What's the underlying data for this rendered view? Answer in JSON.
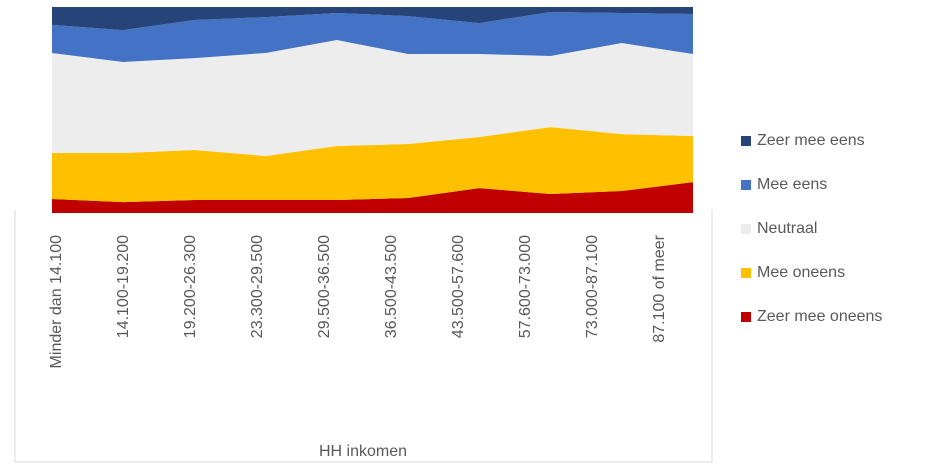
{
  "chart_data": {
    "type": "stacked_area",
    "x_label": "HH inkomen",
    "categories": [
      "Minder dan 14.100",
      "14.100-19.200",
      "19.200-26.300",
      "23.300-29.500",
      "29.500-36.500",
      "36.500-43.500",
      "43.500-57.600",
      "57.600-73.000",
      "73.000-87.100",
      "87.100 of meer"
    ],
    "ylim": [
      0,
      100
    ],
    "series": [
      {
        "name": "Zeer mee oneens",
        "color": "#c00000",
        "values": [
          6.8,
          5.3,
          6.3,
          6.3,
          6.3,
          7.3,
          12.1,
          9.2,
          10.7,
          15.0
        ]
      },
      {
        "name": "Mee oneens",
        "color": "#ffc000",
        "values": [
          22.3,
          23.8,
          24.3,
          21.4,
          26.2,
          26.2,
          24.8,
          32.5,
          27.6,
          22.4
        ]
      },
      {
        "name": "Neutraal",
        "color": "#ededed",
        "values": [
          48.6,
          44.2,
          44.6,
          50.0,
          51.5,
          43.7,
          40.3,
          34.5,
          44.2,
          39.8
        ]
      },
      {
        "name": "Mee eens",
        "color": "#4472c4",
        "values": [
          13.6,
          15.5,
          18.5,
          17.4,
          13.1,
          18.4,
          15.0,
          21.4,
          14.6,
          19.4
        ]
      },
      {
        "name": "Zeer mee eens",
        "color": "#264478",
        "values": [
          8.7,
          11.2,
          6.3,
          4.9,
          2.9,
          4.4,
          7.8,
          2.4,
          2.9,
          3.4
        ]
      }
    ],
    "legend": "right"
  }
}
